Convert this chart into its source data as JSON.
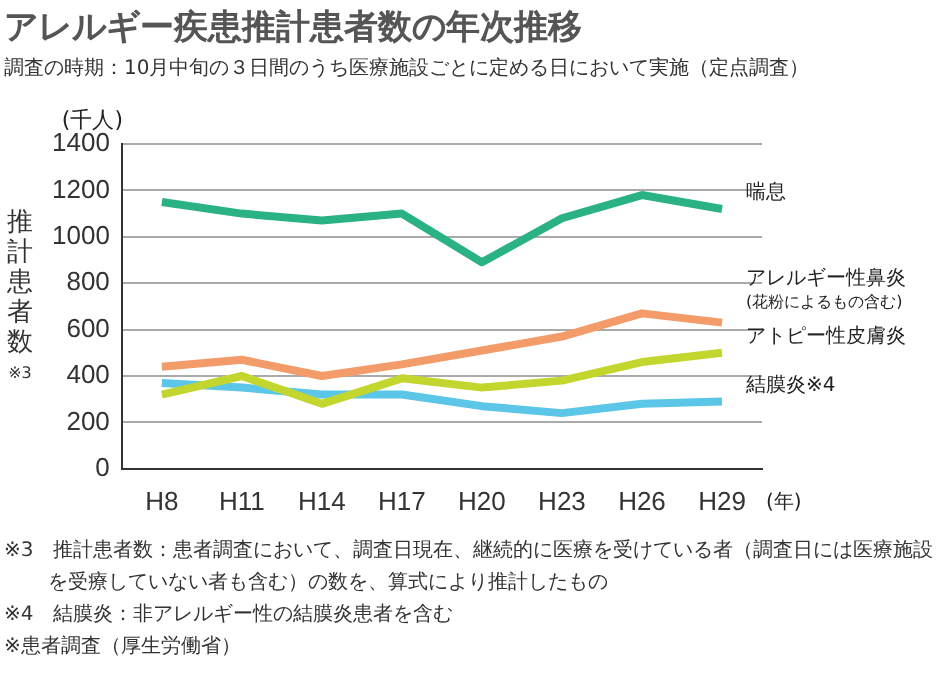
{
  "chart_data": {
    "type": "line",
    "title": "アレルギー疾患推計患者数の年次推移",
    "subtitle": "調査の時期：10月中旬の３日間のうち医療施設ごとに定める日において実施（定点調査）",
    "ylabel": "推計患者数※3",
    "xlabel": "(年)",
    "categories": [
      "H8",
      "H11",
      "H14",
      "H17",
      "H20",
      "H23",
      "H26",
      "H29"
    ],
    "series": [
      {
        "name": "喘息",
        "color": "#2bb284",
        "values": [
          1150,
          1100,
          1070,
          1100,
          890,
          1080,
          1180,
          1120
        ]
      },
      {
        "name": "アレルギー性鼻炎\n(花粉によるもの含む)",
        "color": "#f49b6a",
        "values": [
          440,
          470,
          400,
          450,
          510,
          570,
          670,
          630
        ]
      },
      {
        "name": "アトピー性皮膚炎",
        "color": "#c3d62e",
        "values": [
          320,
          400,
          280,
          390,
          350,
          380,
          460,
          500
        ]
      },
      {
        "name": "結膜炎※4",
        "color": "#5bc6e8",
        "values": [
          370,
          350,
          320,
          320,
          270,
          240,
          280,
          290
        ]
      }
    ],
    "ylim": [
      0,
      1400
    ],
    "yticks": [
      0,
      200,
      400,
      600,
      800,
      1000,
      1200,
      1400
    ],
    "grid": "y",
    "legend": false,
    "marker": "none",
    "line_style": "solid",
    "annotations": [
      "(千人)",
      "※3　推計患者数：患者調査において、調査日現在、継続的に医療を受けている者（調査日には医療施設を受療していない者も含む）の数を、算式により推計したもの",
      "※4　結膜炎：非アレルギー性の結膜炎患者を含む",
      "※患者調査（厚生労働省）"
    ]
  }
}
